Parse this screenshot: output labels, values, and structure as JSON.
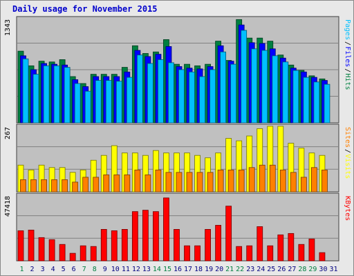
{
  "chart_data": {
    "type": "bar",
    "title": "Daily usage for November 2015",
    "days": [
      "1",
      "2",
      "3",
      "4",
      "5",
      "6",
      "7",
      "8",
      "9",
      "10",
      "11",
      "12",
      "13",
      "14",
      "15",
      "16",
      "17",
      "18",
      "19",
      "20",
      "21",
      "22",
      "23",
      "24",
      "25",
      "26",
      "27",
      "28",
      "29",
      "30",
      "31"
    ],
    "weekend_days": [
      "1",
      "7",
      "8",
      "14",
      "15",
      "21",
      "22",
      "28",
      "29"
    ],
    "panels": [
      {
        "id": "pages-files-hits",
        "ymax_label": "1343",
        "ymax": 1343,
        "series": [
          {
            "name": "Hits",
            "color": "#008040",
            "values": [
              930,
              740,
              800,
              790,
              820,
              600,
              510,
              630,
              630,
              630,
              720,
              1000,
              900,
              920,
              1080,
              760,
              760,
              740,
              760,
              1060,
              810,
              1340,
              1100,
              1100,
              1060,
              880,
              750,
              680,
              610,
              570
            ]
          },
          {
            "name": "Files",
            "color": "#0000ff",
            "values": [
              870,
              690,
              770,
              760,
              750,
              560,
              470,
              600,
              600,
              600,
              660,
              940,
              860,
              890,
              990,
              730,
              710,
              700,
              730,
              1000,
              800,
              1270,
              1040,
              1030,
              960,
              840,
              710,
              660,
              590,
              550
            ]
          },
          {
            "name": "Pages",
            "color": "#00c0ff",
            "values": [
              830,
              630,
              740,
              740,
              720,
              510,
              410,
              550,
              550,
              540,
              590,
              880,
              770,
              820,
              780,
              690,
              660,
              600,
              690,
              920,
              760,
              1200,
              960,
              940,
              870,
              790,
              680,
              590,
              530,
              500
            ]
          }
        ],
        "axis_labels": [
          "Pages",
          "/",
          "Files",
          "/",
          "Hits"
        ]
      },
      {
        "id": "sites-visits",
        "ymax_label": "267",
        "ymax": 267,
        "series": [
          {
            "name": "Visits",
            "color": "#ffff00",
            "values": [
              110,
              90,
              110,
              100,
              100,
              80,
              90,
              130,
              150,
              190,
              160,
              160,
              150,
              170,
              160,
              160,
              160,
              150,
              140,
              160,
              220,
              210,
              230,
              260,
              270,
              270,
              200,
              180,
              160,
              150
            ]
          },
          {
            "name": "Sites",
            "color": "#ff8000",
            "values": [
              50,
              50,
              50,
              50,
              50,
              40,
              60,
              60,
              70,
              70,
              70,
              90,
              70,
              90,
              80,
              80,
              80,
              80,
              80,
              90,
              90,
              90,
              100,
              110,
              110,
              90,
              80,
              60,
              100,
              90
            ]
          }
        ],
        "axis_labels": [
          "Sites",
          "/",
          "Visits"
        ]
      },
      {
        "id": "kbytes",
        "ymax_label": "47418",
        "ymax": 47418,
        "series": [
          {
            "name": "KBytes",
            "color": "#ff0000",
            "values": [
              22000,
              22500,
              17000,
              15500,
              12000,
              5500,
              11000,
              10500,
              23000,
              22000,
              23000,
              36000,
              37000,
              36000,
              46000,
              23000,
              11000,
              11000,
              23000,
              26000,
              40000,
              10500,
              11000,
              25000,
              11000,
              19000,
              20000,
              12000,
              16000,
              6000,
              null
            ]
          }
        ],
        "axis_labels": [
          "KBytes"
        ]
      }
    ]
  },
  "colors": {
    "weekday_label": "#000080",
    "weekend_label": "#008040",
    "panel_bg": "#c0c0c0",
    "grid": "#808080"
  }
}
